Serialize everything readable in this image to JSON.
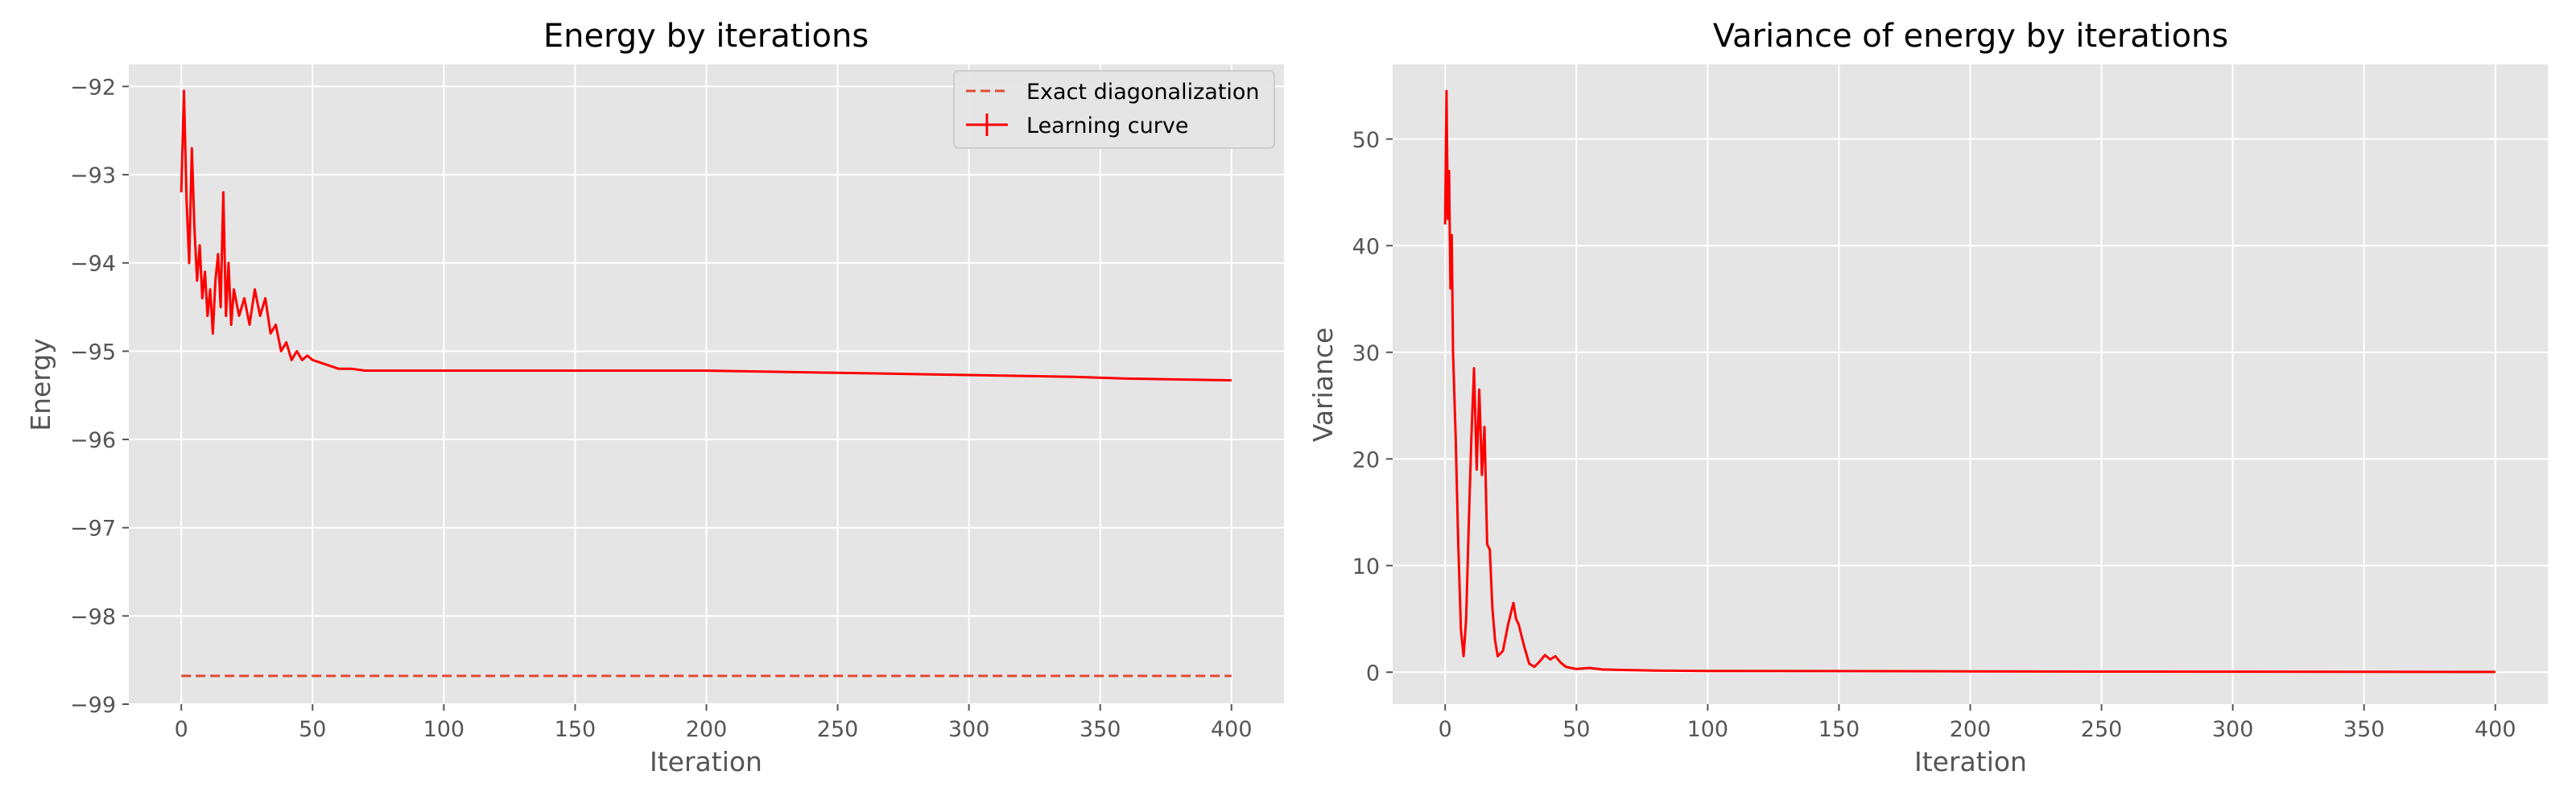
{
  "chart_data": [
    {
      "type": "line",
      "title": "Energy by iterations",
      "xlabel": "Iteration",
      "ylabel": "Energy",
      "xlim": [
        -20,
        420
      ],
      "ylim": [
        -99,
        -91.75
      ],
      "xticks": [
        0,
        50,
        100,
        150,
        200,
        250,
        300,
        350,
        400
      ],
      "yticks": [
        -99,
        -98,
        -97,
        -96,
        -95,
        -94,
        -93,
        -92
      ],
      "xtick_labels": [
        "0",
        "50",
        "100",
        "150",
        "200",
        "250",
        "300",
        "350",
        "400"
      ],
      "ytick_labels": [
        "−99",
        "−98",
        "−97",
        "−96",
        "−95",
        "−94",
        "−93",
        "−92"
      ],
      "grid": true,
      "legend_position": "top-right",
      "colors": {
        "line": "#ff0000",
        "dashed": "#e24a33",
        "background": "#e5e5e5",
        "grid": "#ffffff"
      },
      "series": [
        {
          "name": "Exact diagonalization",
          "style": "dashed",
          "x": [
            0,
            400
          ],
          "y": [
            -98.68,
            -98.68
          ]
        },
        {
          "name": "Learning curve",
          "style": "solid-errorbar",
          "x": [
            0,
            1,
            2,
            3,
            4,
            5,
            6,
            7,
            8,
            9,
            10,
            11,
            12,
            13,
            14,
            15,
            16,
            17,
            18,
            19,
            20,
            22,
            24,
            26,
            28,
            30,
            32,
            34,
            36,
            38,
            40,
            42,
            44,
            46,
            48,
            50,
            55,
            60,
            65,
            70,
            80,
            90,
            100,
            120,
            140,
            160,
            180,
            200,
            220,
            240,
            260,
            280,
            300,
            320,
            340,
            360,
            380,
            400
          ],
          "y": [
            -93.2,
            -92.05,
            -93.3,
            -94.0,
            -92.7,
            -93.6,
            -94.2,
            -93.8,
            -94.4,
            -94.1,
            -94.6,
            -94.3,
            -94.8,
            -94.2,
            -93.9,
            -94.5,
            -93.2,
            -94.6,
            -94.0,
            -94.7,
            -94.3,
            -94.6,
            -94.4,
            -94.7,
            -94.3,
            -94.6,
            -94.4,
            -94.8,
            -94.7,
            -95.0,
            -94.9,
            -95.1,
            -95.0,
            -95.1,
            -95.05,
            -95.1,
            -95.15,
            -95.2,
            -95.2,
            -95.22,
            -95.22,
            -95.22,
            -95.22,
            -95.22,
            -95.22,
            -95.22,
            -95.22,
            -95.22,
            -95.23,
            -95.24,
            -95.25,
            -95.26,
            -95.27,
            -95.28,
            -95.29,
            -95.31,
            -95.32,
            -95.33
          ]
        }
      ]
    },
    {
      "type": "line",
      "title": "Variance of energy by iterations",
      "xlabel": "Iteration",
      "ylabel": "Variance",
      "xlim": [
        -20,
        420
      ],
      "ylim": [
        -3,
        57
      ],
      "xticks": [
        0,
        50,
        100,
        150,
        200,
        250,
        300,
        350,
        400
      ],
      "yticks": [
        0,
        10,
        20,
        30,
        40,
        50
      ],
      "xtick_labels": [
        "0",
        "50",
        "100",
        "150",
        "200",
        "250",
        "300",
        "350",
        "400"
      ],
      "ytick_labels": [
        "0",
        "10",
        "20",
        "30",
        "40",
        "50"
      ],
      "grid": true,
      "colors": {
        "line": "#ff0000",
        "background": "#e5e5e5",
        "grid": "#ffffff"
      },
      "series": [
        {
          "style": "solid",
          "x": [
            0,
            0.5,
            1,
            1.5,
            2,
            2.5,
            3,
            4,
            5,
            6,
            7,
            8,
            9,
            10,
            11,
            12,
            13,
            14,
            15,
            16,
            17,
            18,
            19,
            20,
            22,
            24,
            26,
            27,
            28,
            30,
            32,
            34,
            36,
            38,
            40,
            42,
            44,
            46,
            48,
            50,
            55,
            60,
            70,
            80,
            100,
            150,
            200,
            250,
            300,
            350,
            400
          ],
          "y": [
            42,
            54.5,
            42.5,
            47,
            36,
            41,
            30,
            22,
            12,
            4,
            1.5,
            5,
            14,
            22,
            28.5,
            19,
            26.5,
            18.5,
            23,
            12,
            11.5,
            6,
            3,
            1.5,
            2,
            4.5,
            6.5,
            5,
            4.5,
            2.5,
            0.8,
            0.5,
            1.0,
            1.6,
            1.2,
            1.5,
            0.9,
            0.5,
            0.4,
            0.3,
            0.4,
            0.25,
            0.2,
            0.15,
            0.12,
            0.1,
            0.08,
            0.06,
            0.05,
            0.04,
            0.03
          ]
        }
      ]
    }
  ]
}
